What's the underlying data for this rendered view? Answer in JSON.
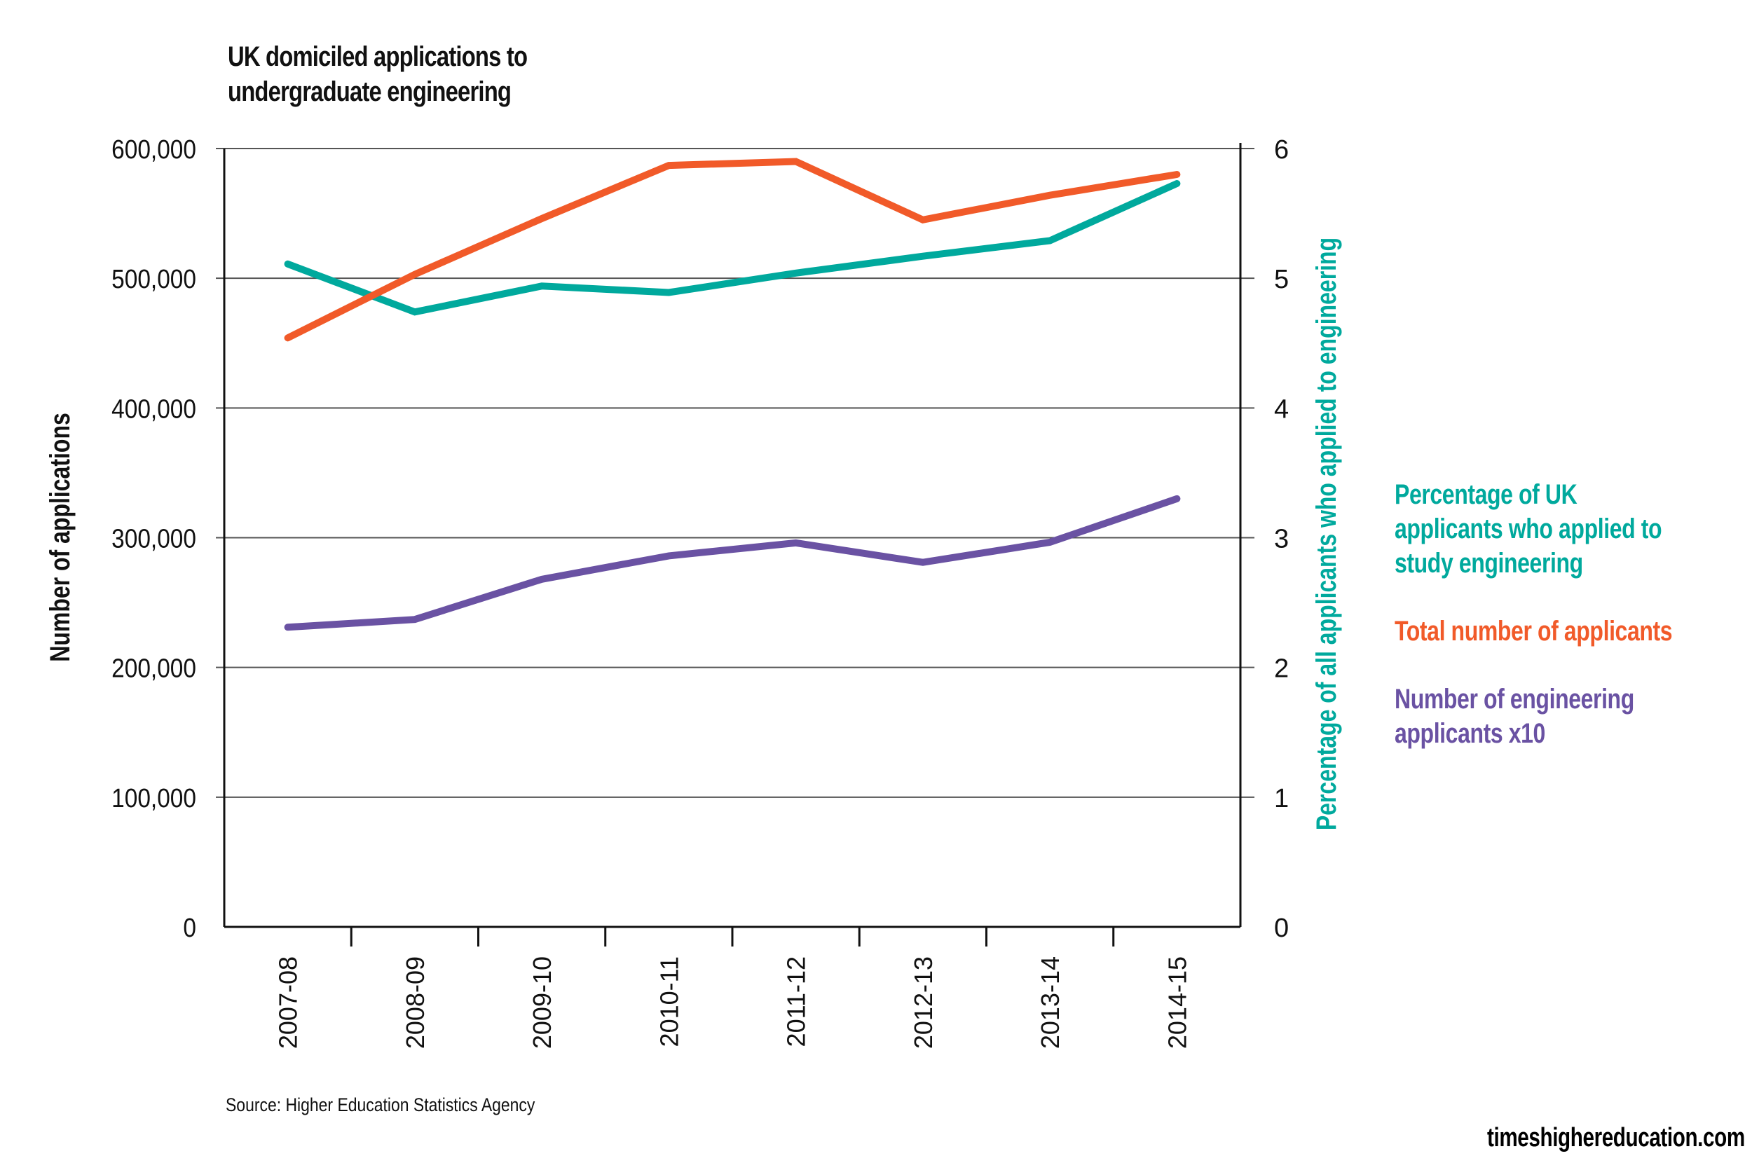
{
  "header": {
    "title_line1": "UK domiciled applications to",
    "title_line2": "undergraduate engineering"
  },
  "footer": {
    "source": "Source: Higher Education Statistics Agency",
    "brand": "timeshighereducation.com"
  },
  "colors": {
    "teal": "#00a99d",
    "orange": "#f15a29",
    "purple": "#6a52a3",
    "axis": "#111111",
    "grid": "#555555"
  },
  "chart_data": {
    "type": "line",
    "title": "UK domiciled applications to undergraduate engineering",
    "categories": [
      "2007-08",
      "2008-09",
      "2009-10",
      "2010-11",
      "2011-12",
      "2012-13",
      "2013-14",
      "2014-15"
    ],
    "xlabel": "",
    "ylabel": "Number of applications",
    "y2label": "Percentage of all applicants who applied to engineering",
    "ylim": [
      0,
      600000
    ],
    "y2lim": [
      0,
      6
    ],
    "yticks": [
      "0",
      "100,000",
      "200,000",
      "300,000",
      "400,000",
      "500,000",
      "600,000"
    ],
    "y2ticks": [
      "0",
      "1",
      "2",
      "3",
      "4",
      "5",
      "6"
    ],
    "grid": true,
    "legend_position": "right",
    "series": [
      {
        "name": "Percentage of UK applicants who applied to study engineering",
        "legend_lines": [
          "Percentage of UK",
          "applicants who applied to",
          "study engineering"
        ],
        "axis": "right",
        "color": "#00a99d",
        "values": [
          5.11,
          4.74,
          4.94,
          4.89,
          5.04,
          5.17,
          5.29,
          5.73
        ]
      },
      {
        "name": "Total number of applicants",
        "legend_lines": [
          "Total number of applicants"
        ],
        "axis": "left",
        "color": "#f15a29",
        "values": [
          454000,
          503000,
          546000,
          587000,
          590000,
          545000,
          564000,
          580000
        ]
      },
      {
        "name": "Number of engineering applicants x10",
        "legend_lines": [
          "Number of engineering",
          "applicants x10"
        ],
        "axis": "left",
        "color": "#6a52a3",
        "values": [
          231000,
          237000,
          268000,
          286000,
          296000,
          281000,
          296500,
          330000
        ]
      }
    ]
  }
}
